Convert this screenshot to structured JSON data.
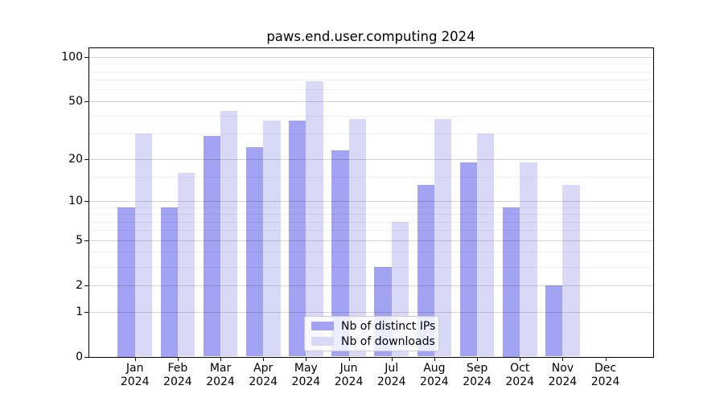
{
  "title": "paws.end.user.computing 2024",
  "colors": {
    "distinct_ips": "#a3a3f3",
    "downloads": "#d9d9f7",
    "axis": "#000000",
    "grid_major": "rgba(0,0,0,0.16)",
    "grid_minor": "rgba(0,0,0,0.055)"
  },
  "legend": {
    "items": [
      {
        "label": "Nb of distinct IPs",
        "color": "#a3a3f3"
      },
      {
        "label": "Nb of downloads",
        "color": "#d9d9f7"
      }
    ]
  },
  "chart_data": {
    "type": "bar",
    "title": "paws.end.user.computing 2024",
    "categories": [
      "Jan 2024",
      "Feb 2024",
      "Mar 2024",
      "Apr 2024",
      "May 2024",
      "Jun 2024",
      "Jul 2024",
      "Aug 2024",
      "Sep 2024",
      "Oct 2024",
      "Nov 2024",
      "Dec 2024"
    ],
    "series": [
      {
        "name": "Nb of distinct IPs",
        "color": "#a3a3f3",
        "values": [
          9,
          9,
          29,
          24,
          37,
          23,
          3,
          13,
          19,
          9,
          2,
          0
        ]
      },
      {
        "name": "Nb of downloads",
        "color": "#d9d9f7",
        "values": [
          30,
          16,
          43,
          37,
          68,
          38,
          7,
          38,
          30,
          19,
          13,
          0
        ]
      }
    ],
    "yscale": "log10(1+y)",
    "ylim": [
      0,
      120
    ],
    "yticks": [
      100,
      50,
      20,
      10,
      5,
      2,
      1,
      0
    ],
    "minor_yticks": [
      3,
      4,
      6,
      7,
      8,
      9,
      15,
      30,
      40,
      60,
      70,
      80,
      90
    ],
    "grid": true,
    "legend_position": "lower center"
  }
}
